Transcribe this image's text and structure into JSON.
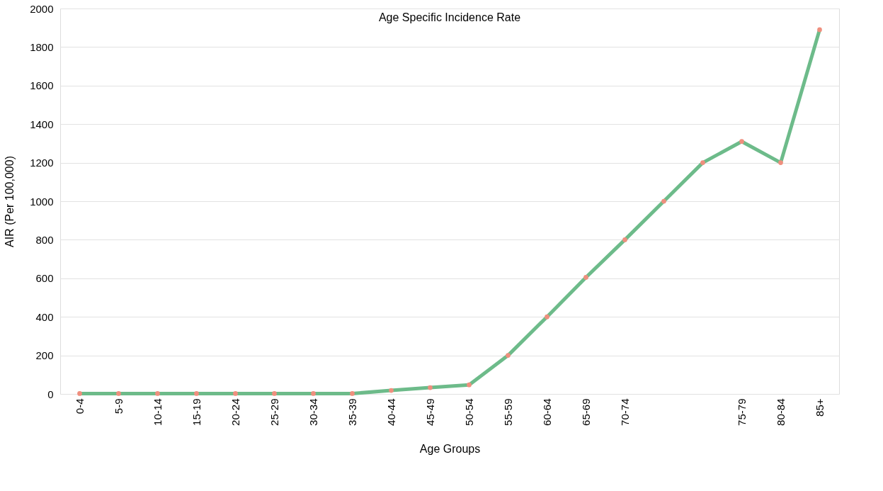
{
  "chart_data": {
    "type": "line",
    "title": "Age Specific Incidence Rate",
    "xlabel": "Age Groups",
    "ylabel": "AIR (Per 100,000)",
    "categories": [
      "0-4",
      "5-9",
      "10-14",
      "15-19",
      "20-24",
      "25-29",
      "30-34",
      "35-39",
      "40-44",
      "45-49",
      "50-54",
      "55-59",
      "60-64",
      "65-69",
      "70-74",
      null,
      null,
      "75-79",
      "80-84",
      "85+"
    ],
    "series": [
      {
        "color": "#6dbb8a",
        "values": [
          2,
          2,
          2,
          2,
          2,
          2,
          2,
          2,
          18,
          33,
          47,
          200,
          400,
          605,
          800,
          1000,
          1200,
          1310,
          1200,
          1890
        ]
      },
      {
        "type": "scatter",
        "marker": "circle",
        "color": "#ef8f7e",
        "values": [
          2,
          2,
          2,
          2,
          2,
          2,
          2,
          2,
          18,
          33,
          47,
          200,
          400,
          605,
          800,
          1000,
          1200,
          1310,
          1200,
          1890
        ]
      }
    ],
    "ylim": [
      0,
      2000
    ],
    "yticks": [
      0,
      200,
      400,
      600,
      800,
      1000,
      1200,
      1400,
      1600,
      1800,
      2000
    ],
    "grid": "y",
    "line_style": "solid"
  }
}
